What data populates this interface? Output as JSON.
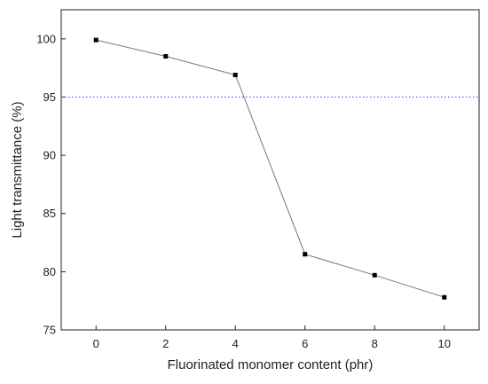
{
  "chart_data": {
    "type": "line",
    "title": "",
    "xlabel": "Fluorinated monomer content (phr)",
    "ylabel": "Light transmittance (%)",
    "xlim": [
      -1,
      11
    ],
    "ylim": [
      75,
      102.5
    ],
    "x_ticks": [
      0,
      2,
      4,
      6,
      8,
      10
    ],
    "x_tick_labels": [
      "0",
      "2",
      "4",
      "6",
      "8",
      "10"
    ],
    "y_ticks": [
      75,
      80,
      85,
      90,
      95,
      100
    ],
    "y_tick_labels": [
      "75",
      "80",
      "85",
      "90",
      "95",
      "100"
    ],
    "grid": false,
    "legend": "none",
    "series": [
      {
        "x": [
          0,
          2,
          4,
          6,
          8,
          10
        ],
        "values": [
          99.9,
          98.5,
          96.9,
          81.5,
          79.7,
          77.8
        ],
        "line_color": "#777777",
        "marker": "square",
        "marker_color": "#000000"
      }
    ],
    "reference_lines": [
      {
        "axis": "y",
        "value": 95,
        "style": "dotted",
        "color": "#5555dd"
      }
    ]
  }
}
